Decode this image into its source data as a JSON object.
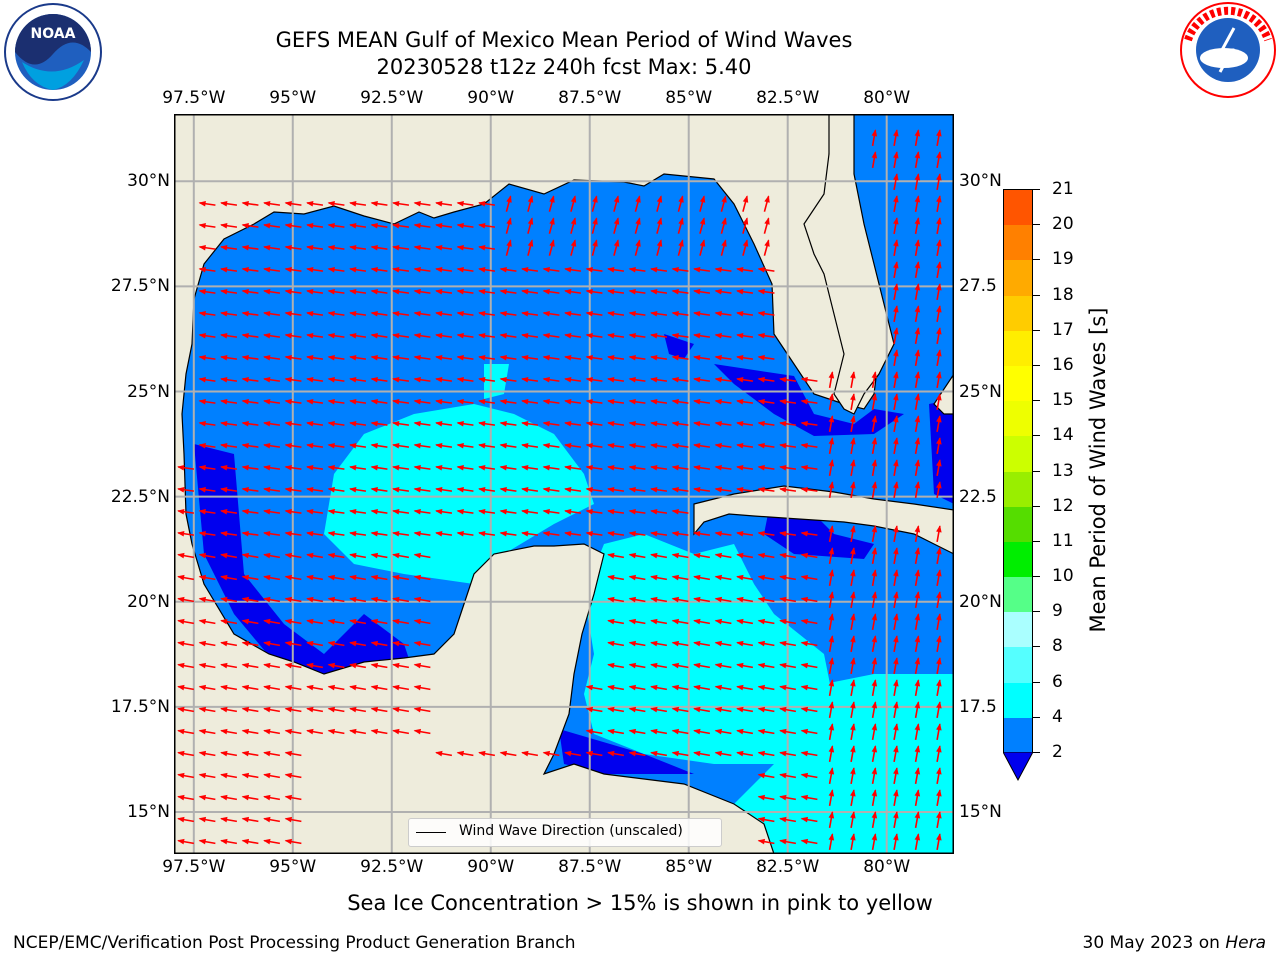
{
  "title": {
    "line1": "GEFS MEAN Gulf of Mexico Mean Period of Wind Waves",
    "line2": "20230528 t12z 240h fcst   Max: 5.40"
  },
  "logos": {
    "left_icon": "noaa-logo",
    "right_icon": "nws-logo"
  },
  "map": {
    "lon_ticks_top": [
      "97.5°W",
      "95°W",
      "92.5°W",
      "90°W",
      "87.5°W",
      "85°W",
      "82.5°W",
      "80°W"
    ],
    "lon_ticks_bottom": [
      "97.5°W",
      "95°W",
      "92.5°W",
      "90°W",
      "87.5°W",
      "85°W",
      "82.5°W",
      "80°W"
    ],
    "lat_ticks_left": [
      "30°N",
      "27.5°N",
      "25°N",
      "22.5°N",
      "20°N",
      "17.5°N",
      "15°N"
    ],
    "lat_ticks_right": [
      "30°N",
      "27.5",
      "25°N",
      "22.5",
      "20°N",
      "17.5",
      "15°N"
    ],
    "lon_values": [
      -97.5,
      -95,
      -92.5,
      -90,
      -87.5,
      -85,
      -82.5,
      -80
    ],
    "lat_values": [
      30,
      27.5,
      25,
      22.5,
      20,
      17.5,
      15
    ],
    "extent": {
      "lon_min": -98,
      "lon_max": -78.3,
      "lat_min": 14,
      "lat_max": 31.6
    },
    "grid": true,
    "land_color": "#eeecdc",
    "arrow_color": "#ff0000",
    "legend_label": "Wind Wave Direction (unscaled)"
  },
  "colorbar": {
    "title": "Mean Period of Wind Waves [s]",
    "ticks": [
      "21",
      "20",
      "19",
      "18",
      "17",
      "16",
      "15",
      "14",
      "13",
      "12",
      "11",
      "10",
      "9",
      "8",
      "6",
      "4",
      "2"
    ],
    "colors": [
      "#ff0000",
      "#ff2a00",
      "#ff5500",
      "#ff8000",
      "#ffaa00",
      "#ffcc00",
      "#ffee00",
      "#ffff00",
      "#eeff00",
      "#ccff00",
      "#99ee00",
      "#55dd00",
      "#00ee00",
      "#55ff88",
      "#aaffff",
      "#55ffff",
      "#00ffff",
      "#0080ff"
    ],
    "extend_color": "#0000ee"
  },
  "ice_note": "Sea Ice Concentration > 15% is shown in pink to yellow",
  "footer": {
    "left": "NCEP/EMC/Verification Post Processing Product Generation Branch",
    "right_date": "30 May 2023 on ",
    "right_host": "Hera"
  }
}
